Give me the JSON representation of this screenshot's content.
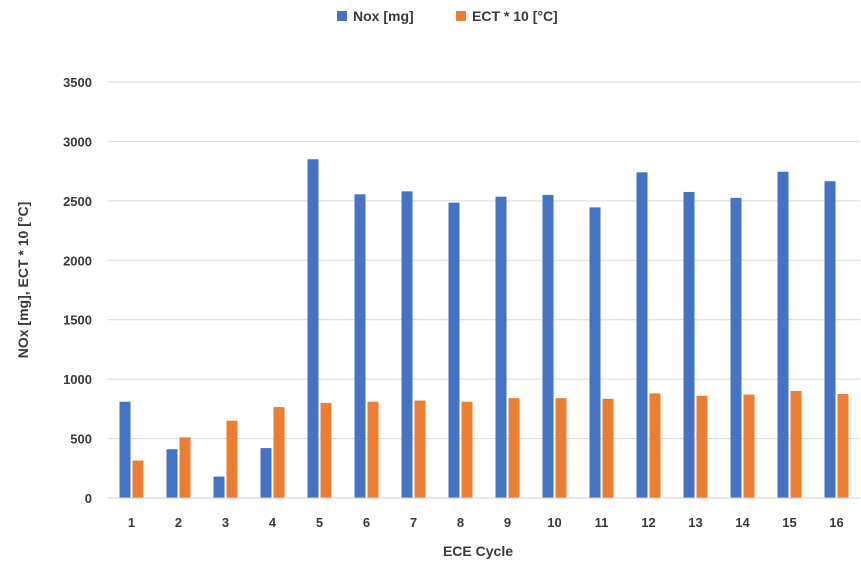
{
  "chart_data": {
    "type": "bar",
    "categories": [
      "1",
      "2",
      "3",
      "4",
      "5",
      "6",
      "7",
      "8",
      "9",
      "10",
      "11",
      "12",
      "13",
      "14",
      "15",
      "16"
    ],
    "series": [
      {
        "name": "Nox [mg]",
        "color": "#4472C4",
        "values": [
          810,
          410,
          180,
          420,
          2850,
          2555,
          2580,
          2485,
          2535,
          2550,
          2445,
          2740,
          2575,
          2525,
          2745,
          2665
        ]
      },
      {
        "name": "ECT * 10 [°C]",
        "color": "#ED7D31",
        "values": [
          315,
          510,
          650,
          765,
          800,
          810,
          820,
          810,
          840,
          840,
          835,
          880,
          860,
          870,
          900,
          875
        ]
      }
    ],
    "xlabel": "ECE Cycle",
    "ylabel": "NOx [mg], ECT * 10 [°C]",
    "ylim": [
      0,
      3500
    ],
    "yticks": [
      0,
      500,
      1000,
      1500,
      2000,
      2500,
      3000,
      3500
    ],
    "grid": true,
    "legend": "top-center"
  }
}
